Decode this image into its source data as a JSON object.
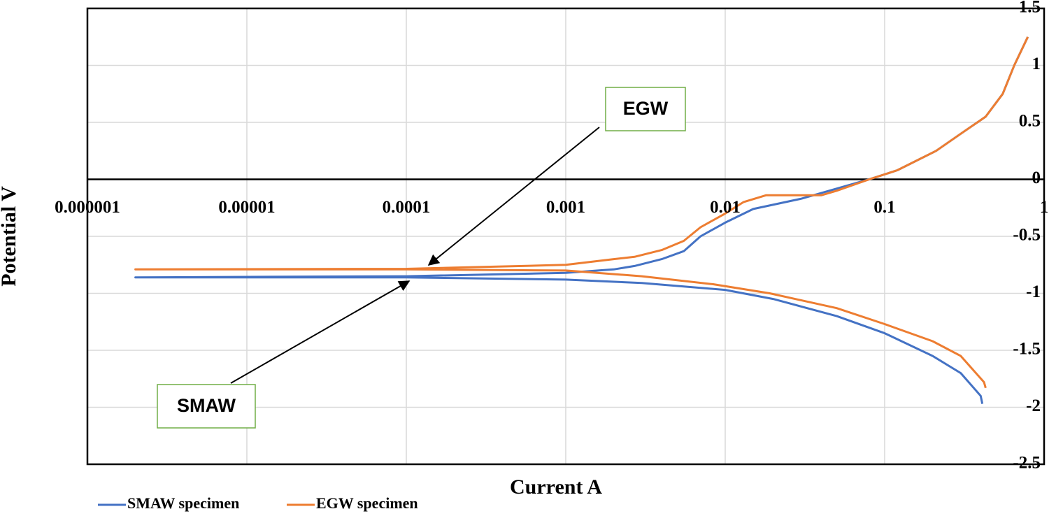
{
  "chart_data": {
    "type": "line",
    "x_label": "Current A",
    "y_label": "Potential V",
    "x_log": true,
    "grid": true,
    "xlim": [
      1e-06,
      1
    ],
    "xticks": [
      1e-06,
      1e-05,
      0.0001,
      0.001,
      0.01,
      0.1,
      1
    ],
    "ylim": [
      -2.5,
      1.5
    ],
    "yticks": [
      1.5,
      1,
      0.5,
      0,
      -0.5,
      -1,
      -1.5,
      -2,
      -2.5
    ],
    "legend": "bottom-left",
    "annotations": [
      {
        "text": "EGW"
      },
      {
        "text": "SMAW"
      }
    ],
    "series": [
      {
        "name": "SMAW specimen",
        "color": "#4472c4",
        "x": [
          0.41,
          0.4,
          0.3,
          0.2,
          0.1,
          0.05,
          0.02,
          0.01,
          0.003,
          0.001,
          0.0001,
          2e-06,
          0.0001,
          0.001,
          0.002,
          0.0027,
          0.004,
          0.0055,
          0.007,
          0.01,
          0.015,
          0.03,
          0.04,
          0.08,
          0.12,
          0.21,
          0.3,
          0.43,
          0.55,
          0.65,
          0.79
        ],
        "values": [
          -1.97,
          -1.9,
          -1.7,
          -1.55,
          -1.35,
          -1.2,
          -1.05,
          -0.97,
          -0.91,
          -0.88,
          -0.86,
          -0.86,
          -0.85,
          -0.82,
          -0.79,
          -0.76,
          -0.7,
          -0.63,
          -0.5,
          -0.38,
          -0.26,
          -0.17,
          -0.12,
          0,
          0.08,
          0.25,
          0.4,
          0.55,
          0.75,
          1.0,
          1.25
        ]
      },
      {
        "name": "EGW specimen",
        "color": "#ed7d31",
        "x": [
          0.43,
          0.42,
          0.3,
          0.2,
          0.1,
          0.05,
          0.019,
          0.0084,
          0.003,
          0.001,
          0.0001,
          2e-06,
          0.0001,
          0.001,
          0.002,
          0.0027,
          0.004,
          0.0055,
          0.007,
          0.01,
          0.013,
          0.018,
          0.04,
          0.05,
          0.08,
          0.12,
          0.21,
          0.3,
          0.43,
          0.55,
          0.65,
          0.79
        ],
        "values": [
          -1.83,
          -1.78,
          -1.55,
          -1.42,
          -1.27,
          -1.13,
          -1.0,
          -0.92,
          -0.85,
          -0.8,
          -0.79,
          -0.79,
          -0.785,
          -0.75,
          -0.7,
          -0.68,
          -0.62,
          -0.54,
          -0.42,
          -0.3,
          -0.2,
          -0.14,
          -0.14,
          -0.1,
          0,
          0.08,
          0.25,
          0.4,
          0.55,
          0.75,
          1.0,
          1.25
        ]
      }
    ]
  }
}
